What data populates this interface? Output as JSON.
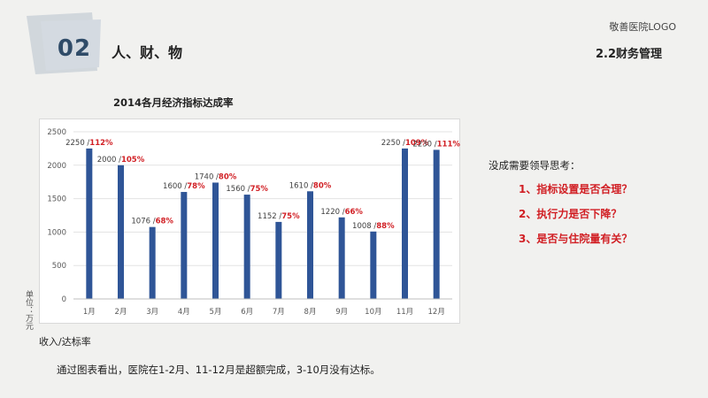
{
  "header": {
    "section_number": "02",
    "section_title": "人、财、物",
    "logo_text": "敬善医院LOGO",
    "subsection": "2.2财务管理"
  },
  "chart_data": {
    "type": "bar",
    "title": "2014各月经济指标达成率",
    "categories": [
      "1月",
      "2月",
      "3月",
      "4月",
      "5月",
      "6月",
      "7月",
      "8月",
      "9月",
      "10月",
      "11月",
      "12月"
    ],
    "values": [
      2250,
      2000,
      1076,
      1600,
      1740,
      1560,
      1152,
      1610,
      1220,
      1008,
      2250,
      2230
    ],
    "rates": [
      "112%",
      "105%",
      "68%",
      "78%",
      "80%",
      "75%",
      "75%",
      "80%",
      "66%",
      "88%",
      "109%",
      "111%"
    ],
    "value_labels": [
      "2250",
      "2000",
      "1076",
      "1600",
      "1740",
      "1560",
      "1152",
      "1610",
      "1220",
      "1008",
      "2250",
      "2230"
    ],
    "ylim": [
      0,
      2500
    ],
    "yticks": [
      0,
      500,
      1000,
      1500,
      2000,
      2500
    ],
    "ylabel": "单位：万元",
    "xlabel": "",
    "legend": "收入/达标率",
    "grid": true,
    "bar_color": "#2f5597",
    "rate_color": "#d11f24"
  },
  "questions": {
    "heading": "没成需要领导思考：",
    "items": [
      "1、指标设置是否合理？",
      "2、执行力是否下降？",
      "3、是否与住院量有关？"
    ]
  },
  "conclusion": "通过图表看出，医院在1-2月、11-12月是超额完成，3-10月没有达标。"
}
